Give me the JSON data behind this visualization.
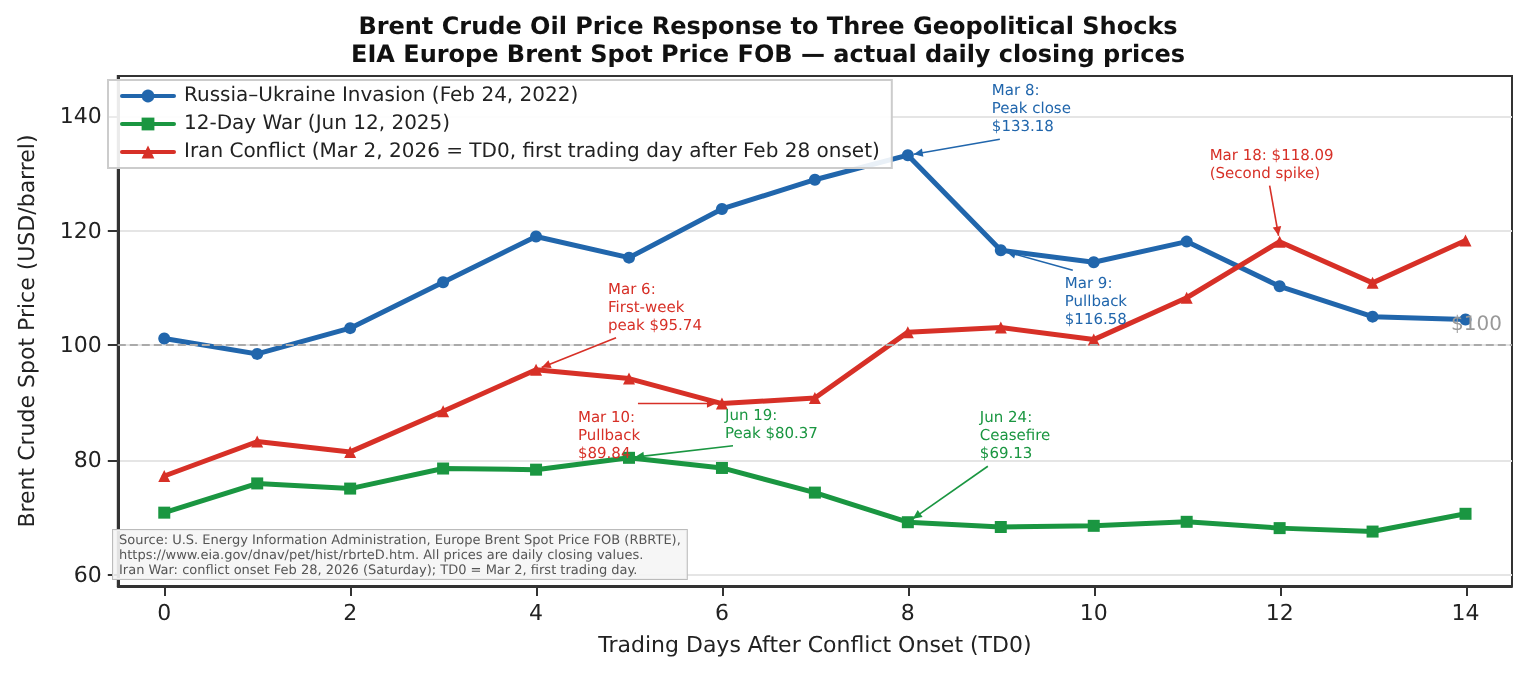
{
  "chart_data": {
    "type": "line",
    "title": "Brent Crude Oil Price Response to Three Geopolitical Shocks",
    "subtitle": "EIA Europe Brent Spot Price FOB — actual daily closing prices",
    "xlabel": "Trading Days After Conflict Onset (TD0)",
    "ylabel": "Brent Crude Spot Price (USD/barrel)",
    "x": [
      0,
      1,
      2,
      3,
      4,
      5,
      6,
      7,
      8,
      9,
      10,
      11,
      12,
      13,
      14
    ],
    "series": [
      {
        "name": "Russia–Ukraine Invasion (Feb 24, 2022)",
        "color": "#2166ac",
        "marker": "circle",
        "values": [
          101.2,
          98.5,
          103,
          111,
          119,
          115.3,
          123.8,
          128.9,
          133.18,
          116.58,
          114.5,
          118.1,
          110.3,
          105,
          104.5
        ]
      },
      {
        "name": "12-Day War (Jun 12, 2025)",
        "color": "#1a9641",
        "marker": "square",
        "values": [
          70.8,
          75.9,
          75,
          78.5,
          78.3,
          80.37,
          78.6,
          74.3,
          69.13,
          68.3,
          68.5,
          69.2,
          68.1,
          67.5,
          70.6
        ]
      },
      {
        "name": "Iran Conflict (Mar 2, 2026 = TD0, first trading day after Feb 28 onset)",
        "color": "#d73027",
        "marker": "triangle",
        "values": [
          77.2,
          83.2,
          81.4,
          88.5,
          95.74,
          94.2,
          89.84,
          90.8,
          102.3,
          103.1,
          101,
          108.3,
          118.09,
          110.9,
          118.3
        ]
      }
    ],
    "xlim": [
      -0.5,
      14.5
    ],
    "xticks": [
      0,
      2,
      4,
      6,
      8,
      10,
      12,
      14
    ],
    "ylim": [
      58,
      147
    ],
    "yticks": [
      60,
      80,
      100,
      120,
      140
    ],
    "grid": "y",
    "legend": "top left",
    "line_style": "solid",
    "ref_lines": [
      {
        "axis": "y",
        "value": 100,
        "label": "$100",
        "color": "#aaaaaa",
        "line_style": "dashed"
      }
    ],
    "annotations": [
      {
        "text": "Mar 8:\nPeak close\n$133.18",
        "x": 8,
        "y": 133.18
      },
      {
        "text": "Mar 9:\nPullback\n$116.58",
        "x": 9,
        "y": 116.58
      },
      {
        "text": "Mar 6:\nFirst-week\npeak $95.74",
        "x": 4,
        "y": 95.74
      },
      {
        "text": "Mar 10:\nPullback\n$89.84",
        "x": 6,
        "y": 89.84
      },
      {
        "text": "Mar 18: $118.09\n(Second spike)",
        "x": 12,
        "y": 118.09
      },
      {
        "text": "Jun 19:\nPeak $80.37",
        "x": 5,
        "y": 80.37
      },
      {
        "text": "Jun 24:\nCeasefire\n$69.13",
        "x": 8,
        "y": 69.13
      },
      "Source: U.S. Energy Information Administration, Europe Brent Spot Price FOB (RBRTE),\nhttps://www.eia.gov/dnav/pet/hist/rbrteD.htm. All prices are daily closing values.\nIran War: conflict onset Feb 28, 2026 (Saturday); TD0 = Mar 2, first trading day."
    ]
  }
}
